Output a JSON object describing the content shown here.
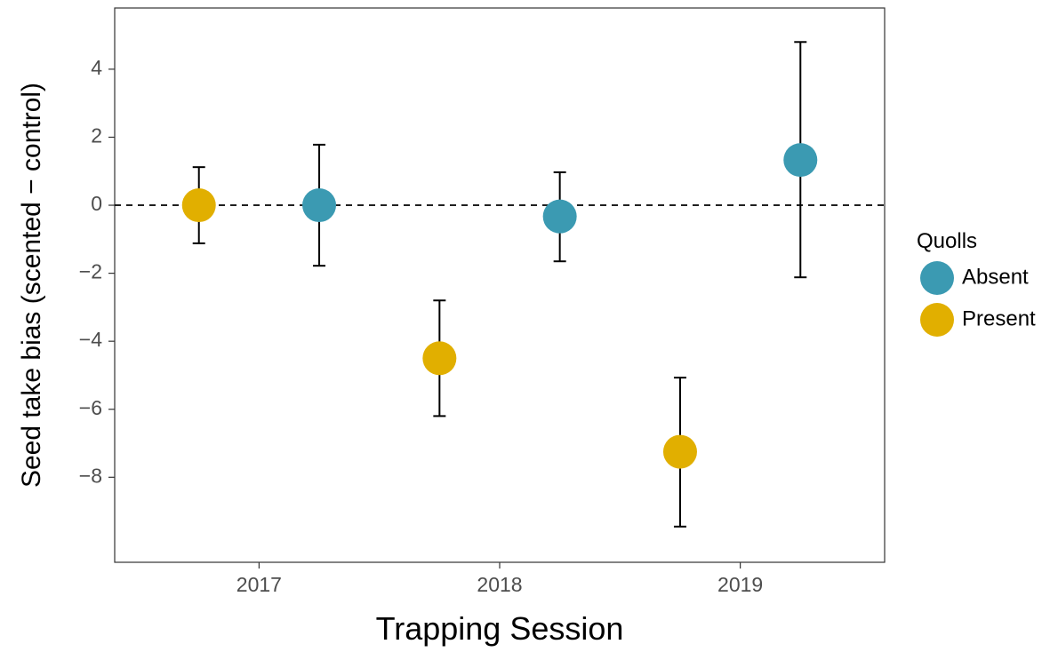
{
  "chart_data": {
    "type": "scatter",
    "xlabel": "Trapping Session",
    "ylabel": "Seed take bias (scented − control)",
    "x_ticks": [
      "2017",
      "2018",
      "2019"
    ],
    "y_ticks": [
      4,
      2,
      0,
      -2,
      -4,
      -6,
      -8
    ],
    "y_tick_labels": [
      "4",
      "2",
      "0",
      "−2",
      "−4",
      "−6",
      "−8"
    ],
    "xlim": [
      2016.4,
      2019.6
    ],
    "ylim": [
      -10.5,
      5.8
    ],
    "reference_line": {
      "y": 0,
      "style": "dashed"
    },
    "legend": {
      "title": "Quolls",
      "position": "right",
      "entries": [
        {
          "name": "Absent",
          "color": "#3b9ab2"
        },
        {
          "name": "Present",
          "color": "#e1af00"
        }
      ]
    },
    "points": [
      {
        "x": 2016.75,
        "y": 0.0,
        "ymin": -1.12,
        "ymax": 1.12,
        "group": "Present"
      },
      {
        "x": 2017.25,
        "y": 0.0,
        "ymin": -1.78,
        "ymax": 1.78,
        "group": "Absent"
      },
      {
        "x": 2017.75,
        "y": -4.5,
        "ymin": -6.2,
        "ymax": -2.8,
        "group": "Present"
      },
      {
        "x": 2018.25,
        "y": -0.33,
        "ymin": -1.65,
        "ymax": 0.97,
        "group": "Absent"
      },
      {
        "x": 2018.75,
        "y": -7.25,
        "ymin": -9.45,
        "ymax": -5.07,
        "group": "Present"
      },
      {
        "x": 2019.25,
        "y": 1.33,
        "ymin": -2.12,
        "ymax": 4.8,
        "group": "Absent"
      }
    ]
  }
}
